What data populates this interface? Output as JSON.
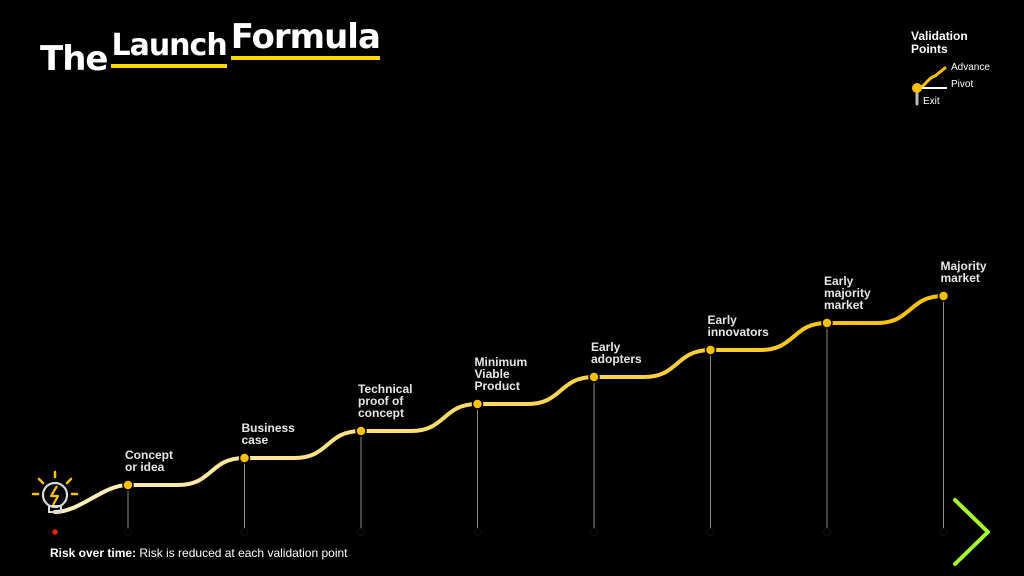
{
  "title": {
    "word1": "The",
    "word2": "Launch",
    "word3": "Formula"
  },
  "legend": {
    "title": "Validation Points",
    "advance": "Advance",
    "pivot": "Pivot",
    "exit": "Exit"
  },
  "stages": [
    {
      "label": "Concept or idea"
    },
    {
      "label": "Business case"
    },
    {
      "label": "Technical proof of concept"
    },
    {
      "label": "Minimum Viable Product"
    },
    {
      "label": "Early adopters"
    },
    {
      "label": "Early innovators"
    },
    {
      "label": "Early majority market"
    },
    {
      "label": "Majority market"
    }
  ],
  "footer": {
    "bold": "Risk over time:",
    "text": " Risk is reduced at each validation point"
  },
  "colors": {
    "curve_start": "#FFF2C2",
    "curve_end": "#FFC000",
    "risk_start": "#E8250C",
    "risk_end": "#A8FF2E",
    "dot": "#FFC000",
    "lightbulb": "#FFC000"
  },
  "icons": {
    "start": "lightbulb-icon",
    "end": "arrow-right-icon"
  }
}
